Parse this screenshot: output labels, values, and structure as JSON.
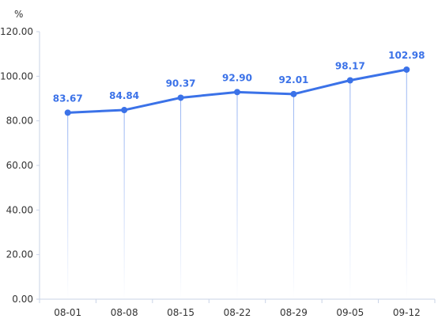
{
  "chart_data": {
    "type": "line",
    "title": "",
    "xlabel": "",
    "ylabel": "%",
    "categories": [
      "08-01",
      "08-08",
      "08-15",
      "08-22",
      "08-29",
      "09-05",
      "09-12"
    ],
    "series": [
      {
        "values": [
          83.67,
          84.84,
          90.37,
          92.9,
          92.01,
          98.17,
          102.98
        ]
      }
    ],
    "data_labels": [
      "83.67",
      "84.84",
      "90.37",
      "92.90",
      "92.01",
      "98.17",
      "102.98"
    ],
    "y_ticks": [
      "0.00",
      "20.00",
      "40.00",
      "60.00",
      "80.00",
      "100.00",
      "120.00"
    ],
    "ylim": [
      0,
      120
    ],
    "grid": false,
    "drop_lines": true,
    "colors": {
      "line": "#3b72e8",
      "axis": "#c9d3e6",
      "text": "#333333"
    }
  }
}
